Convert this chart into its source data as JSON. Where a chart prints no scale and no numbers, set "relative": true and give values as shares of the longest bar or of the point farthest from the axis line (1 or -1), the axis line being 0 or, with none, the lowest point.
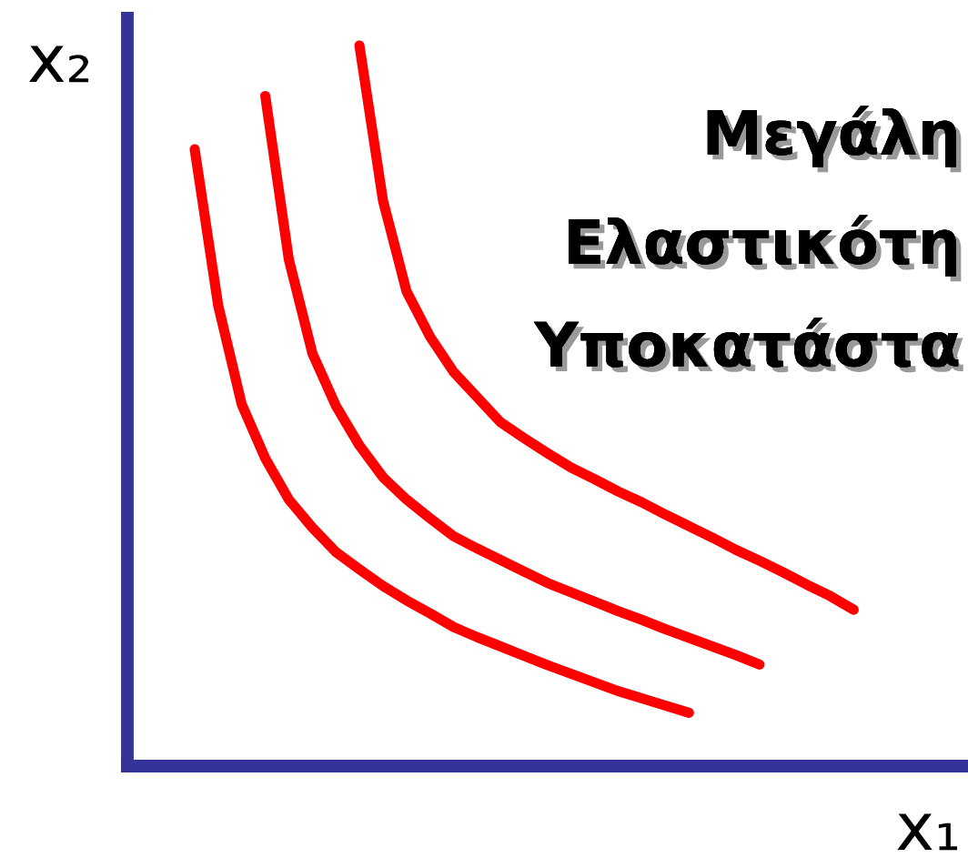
{
  "chart_data": {
    "type": "line",
    "relative": true,
    "xlabel": "x₁",
    "ylabel": "x₂",
    "tick_labels": false,
    "grid": false,
    "legend": false,
    "marker": "none",
    "line_style": "solid",
    "annotations": [
      "Μεγάλη",
      "Ελαστικότη",
      "Υποκατάστα"
    ],
    "categories": [
      null,
      null,
      null,
      null,
      null,
      null,
      null,
      null,
      null,
      null,
      null,
      null,
      null,
      null,
      null,
      null,
      null,
      null,
      null,
      null,
      null,
      null,
      null,
      null,
      null,
      null,
      null,
      null,
      null,
      null,
      null
    ],
    "series": [
      {
        "color": "#ff0000",
        "values": [
          null,
          null,
          0.856,
          0.639,
          0.502,
          0.427,
          0.37,
          0.331,
          0.297,
          0.273,
          0.25,
          0.23,
          0.212,
          0.193,
          0.179,
          0.166,
          0.153,
          0.14,
          0.128,
          0.116,
          0.104,
          0.094,
          0.084,
          0.074,
          null,
          null,
          null,
          null,
          null,
          null,
          null
        ]
      },
      {
        "color": "#ff0000",
        "values": [
          null,
          null,
          null,
          null,
          null,
          0.93,
          0.703,
          0.573,
          0.5,
          0.445,
          0.401,
          0.37,
          0.344,
          0.319,
          0.302,
          0.286,
          0.27,
          0.254,
          0.241,
          0.228,
          0.215,
          0.203,
          0.19,
          0.178,
          0.166,
          0.154,
          0.141,
          null,
          null,
          null,
          null
        ]
      },
      {
        "color": "#ff0000",
        "values": [
          null,
          null,
          null,
          null,
          null,
          null,
          null,
          null,
          null,
          1.0,
          0.785,
          0.659,
          0.596,
          0.547,
          0.512,
          0.477,
          0.455,
          0.434,
          0.414,
          0.398,
          0.381,
          0.366,
          0.349,
          0.333,
          0.317,
          0.3,
          0.285,
          0.269,
          0.252,
          0.236,
          0.217
        ]
      }
    ]
  }
}
